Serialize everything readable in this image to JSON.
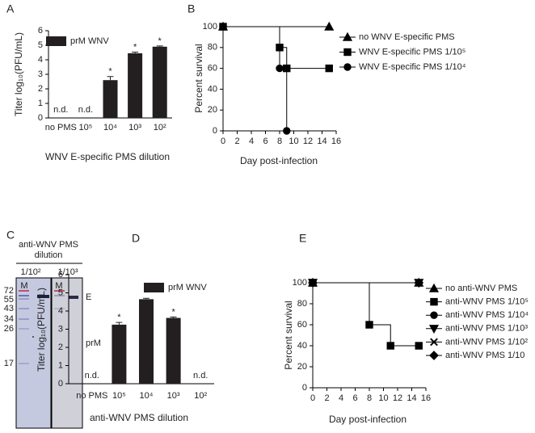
{
  "panel_labels": [
    "A",
    "B",
    "C",
    "D",
    "E"
  ],
  "gel": {
    "title": [
      "anti-WNV PMS",
      "dilution"
    ],
    "lanes": [
      "1/10²",
      "1/10³"
    ],
    "marker_lane": "M",
    "sizes": [
      "72",
      "55",
      "43",
      "34",
      "26",
      "17"
    ],
    "bands": [
      "E",
      "prM"
    ]
  },
  "chart_data": [
    {
      "type": "bar",
      "ylabel": "Titer log₁₀(PFU/mL)",
      "xlabel": "WNV E-specific PMS dilution",
      "categories": [
        "no PMS",
        "10⁵",
        "10⁴",
        "10³",
        "10²"
      ],
      "series": [
        {
          "name": "prM WNV",
          "color": "#231f20",
          "values": [
            null,
            null,
            2.6,
            4.45,
            4.9
          ],
          "errors": [
            null,
            null,
            0.25,
            0.08,
            0.05
          ]
        }
      ],
      "annotations": [
        "n.d.",
        "n.d.",
        "*",
        "*",
        "*"
      ],
      "ylim": [
        0,
        6
      ],
      "yticks": [
        0,
        1,
        2,
        3,
        4,
        5,
        6
      ]
    },
    {
      "type": "step",
      "ylabel": "Percent survival",
      "xlabel": "Day post-infection",
      "xlim": [
        0,
        16
      ],
      "xticks": [
        0,
        2,
        4,
        6,
        8,
        10,
        12,
        14,
        16
      ],
      "ylim": [
        0,
        100
      ],
      "yticks": [
        0,
        20,
        40,
        60,
        80,
        100
      ],
      "series": [
        {
          "name": "no WNV E-specific PMS",
          "color": "#000000",
          "marker": "triangle",
          "x": [
            0,
            15
          ],
          "values": [
            100,
            100
          ]
        },
        {
          "name": "WNV E-specific PMS 1/10⁵",
          "color": "#000000",
          "marker": "square",
          "x": [
            0,
            8,
            9,
            15
          ],
          "values": [
            100,
            80,
            60,
            60
          ]
        },
        {
          "name": "WNV E-specific PMS 1/10⁴",
          "color": "#000000",
          "marker": "circle",
          "x": [
            0,
            8,
            9
          ],
          "values": [
            100,
            60,
            0
          ]
        }
      ]
    },
    {
      "type": "bar",
      "ylabel": "Titer log₁₀(PFU/mL)",
      "xlabel": "anti-WNV PMS dilution",
      "categories": [
        "no PMS",
        "10⁵",
        "10⁴",
        "10³",
        "10²"
      ],
      "series": [
        {
          "name": "prM WNV",
          "color": "#231f20",
          "values": [
            null,
            3.25,
            4.65,
            3.62,
            null
          ],
          "errors": [
            null,
            0.12,
            0.05,
            0.05,
            null
          ]
        }
      ],
      "annotations": [
        "n.d.",
        "*",
        "*",
        "*",
        "n.d."
      ],
      "ylim": [
        0,
        6
      ],
      "yticks": [
        0,
        1,
        2,
        3,
        4,
        5,
        6
      ]
    },
    {
      "type": "step",
      "ylabel": "Percent survival",
      "xlabel": "Day post-infection",
      "xlim": [
        0,
        16
      ],
      "xticks": [
        0,
        2,
        4,
        6,
        8,
        10,
        12,
        14,
        16
      ],
      "ylim": [
        0,
        100
      ],
      "yticks": [
        0,
        20,
        40,
        60,
        80,
        100
      ],
      "series": [
        {
          "name": "no anti-WNV PMS",
          "color": "#000000",
          "marker": "triangle",
          "x": [
            0,
            15
          ],
          "values": [
            100,
            100
          ]
        },
        {
          "name": "anti-WNV PMS 1/10⁵",
          "color": "#000000",
          "marker": "square",
          "x": [
            0,
            8,
            11,
            15
          ],
          "values": [
            100,
            60,
            40,
            40
          ]
        },
        {
          "name": "anti-WNV PMS 1/10⁴",
          "color": "#000000",
          "marker": "circle",
          "x": [
            0,
            15
          ],
          "values": [
            100,
            100
          ]
        },
        {
          "name": "anti-WNV PMS 1/10³",
          "color": "#000000",
          "marker": "down-triangle",
          "x": [
            0,
            15
          ],
          "values": [
            100,
            100
          ]
        },
        {
          "name": "anti-WNV PMS 1/10²",
          "color": "#000000",
          "marker": "x",
          "x": [
            0,
            15
          ],
          "values": [
            100,
            100
          ]
        },
        {
          "name": "anti-WNV PMS 1/10",
          "color": "#000000",
          "marker": "diamond",
          "x": [
            0,
            15
          ],
          "values": [
            100,
            100
          ]
        }
      ]
    }
  ]
}
